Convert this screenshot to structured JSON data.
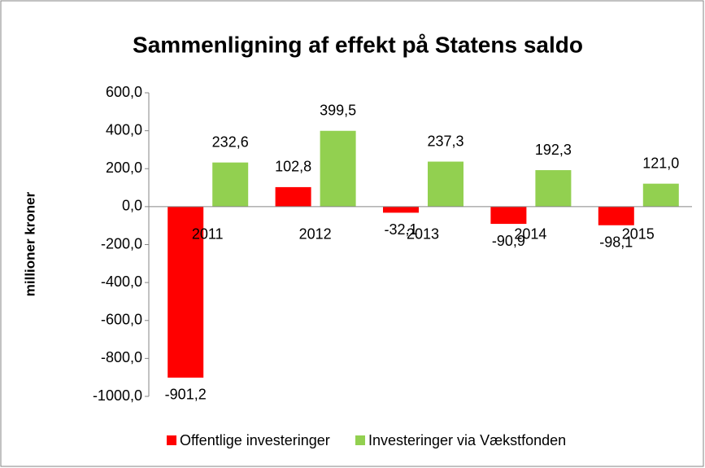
{
  "chart_data": {
    "type": "bar",
    "title": "Sammenligning af effekt på Statens saldo",
    "y_label": "millioner kroner",
    "categories": [
      "2011",
      "2012",
      "2013",
      "2014",
      "2015"
    ],
    "series": [
      {
        "name": "Offentlige investeringer",
        "color": "#ff0000",
        "values": [
          -901.2,
          102.8,
          -32.1,
          -90.9,
          -98.1
        ],
        "value_labels": [
          "-901,2",
          "102,8",
          "-32,1",
          "-90,9",
          "-98,1"
        ]
      },
      {
        "name": "Investeringer via Vækstfonden",
        "color": "#92d050",
        "values": [
          232.6,
          399.5,
          237.3,
          192.3,
          121.0
        ],
        "value_labels": [
          "232,6",
          "399,5",
          "237,3",
          "192,3",
          "121,0"
        ]
      }
    ],
    "ylim": [
      -1000,
      600
    ],
    "yticks": [
      {
        "value": 600,
        "label": "600,0"
      },
      {
        "value": 400,
        "label": "400,0"
      },
      {
        "value": 200,
        "label": "200,0"
      },
      {
        "value": 0,
        "label": "0,0"
      },
      {
        "value": -200,
        "label": "-200,0"
      },
      {
        "value": -400,
        "label": "-400,0"
      },
      {
        "value": -600,
        "label": "-600,0"
      },
      {
        "value": -800,
        "label": "-800,0"
      },
      {
        "value": -1000,
        "label": "-1000,0"
      }
    ],
    "grid": false,
    "legend": "bottom"
  }
}
